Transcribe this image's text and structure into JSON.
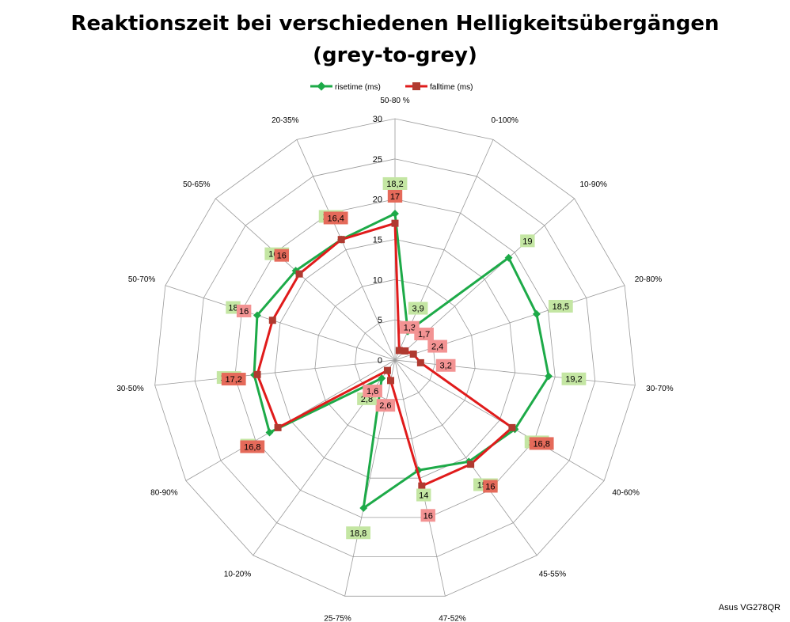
{
  "title_line1": "Reaktionszeit bei verschiedenen Helligkeitsübergängen",
  "title_line2": "(grey-to-grey)",
  "credit": "Asus VG278QR",
  "colors": {
    "rise": "#1daa48",
    "fall": "#e01b1b",
    "fall_marker": "#b03a30",
    "rise_label_bg": "#c4e6a3",
    "fall_label_bg": "#f39393",
    "fall_label_bg_dark": "#e56a5a",
    "grid": "#9a9a9a"
  },
  "chart_data": {
    "type": "radar",
    "title": "Reaktionszeit bei verschiedenen Helligkeitsübergängen (grey-to-grey)",
    "categories": [
      "50-80 %",
      "0-100%",
      "10-90%",
      "20-80%",
      "30-70%",
      "40-60%",
      "45-55%",
      "47-52%",
      "25-75%",
      "10-20%",
      "80-90%",
      "30-50%",
      "50-70%",
      "50-65%",
      "20-35%"
    ],
    "series": [
      {
        "name": "risetime (ms)",
        "values": [
          18.2,
          3.9,
          19,
          18.5,
          19.2,
          17.2,
          15.6,
          14,
          18.8,
          2.8,
          18,
          17.6,
          18,
          16.6,
          16.4
        ],
        "labels": [
          "18,2",
          "3,9",
          "19",
          "18,5",
          "19,2",
          "17,2",
          "15,6",
          "14",
          "18,8",
          "2,8",
          "18",
          "17,6",
          "18",
          "16,6",
          "16,4"
        ]
      },
      {
        "name": "falltime (ms)",
        "values": [
          17,
          1.3,
          1.7,
          2.4,
          3.2,
          16.8,
          16,
          16,
          2.6,
          1.6,
          16.8,
          17.2,
          16,
          16,
          16.4
        ],
        "labels": [
          "17",
          "1,3",
          "1,7",
          "2,4",
          "3,2",
          "16,8",
          "16",
          "16",
          "2,6",
          "1,6",
          "16,8",
          "17,2",
          "16",
          "16",
          "16,4"
        ]
      }
    ],
    "rlim": [
      0,
      30
    ],
    "ticks": [
      "0",
      "5",
      "10",
      "15",
      "20",
      "25",
      "30"
    ],
    "legend": "top"
  }
}
